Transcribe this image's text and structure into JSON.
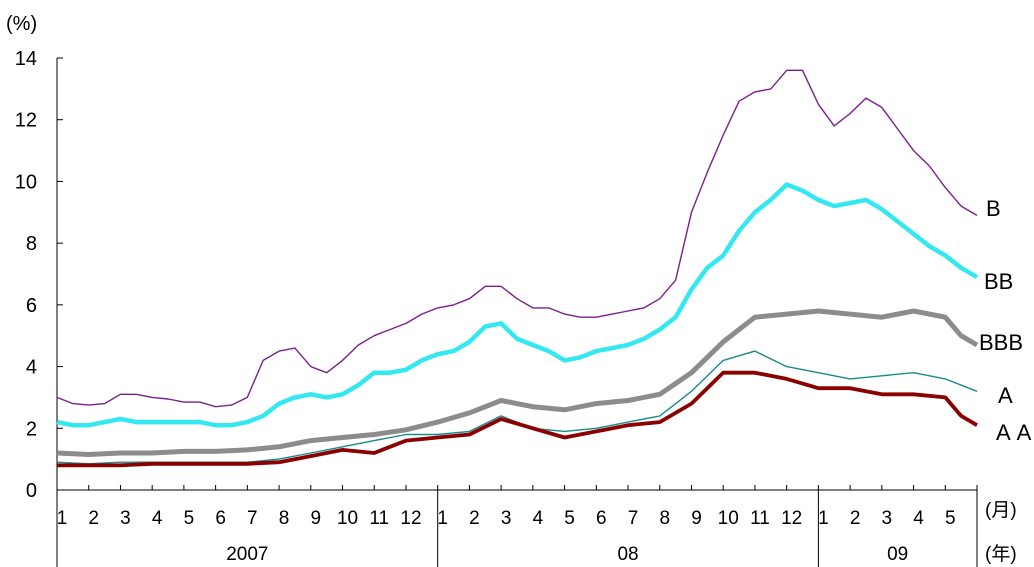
{
  "chart_data": {
    "type": "line",
    "y_unit": "(%)",
    "ylim": [
      0,
      14
    ],
    "yticks": [
      0,
      2,
      4,
      6,
      8,
      10,
      12,
      14
    ],
    "x_months": [
      "1",
      "2",
      "3",
      "4",
      "5",
      "6",
      "7",
      "8",
      "9",
      "10",
      "11",
      "12",
      "1",
      "2",
      "3",
      "4",
      "5",
      "6",
      "7",
      "8",
      "9",
      "10",
      "11",
      "12",
      "1",
      "2",
      "3",
      "4",
      "5"
    ],
    "x_month_unit": "(月)",
    "x_years": [
      {
        "label": "2007",
        "start": 0,
        "span": 12
      },
      {
        "label": "08",
        "start": 12,
        "span": 12
      },
      {
        "label": "09",
        "start": 24,
        "span": 5
      }
    ],
    "x_year_unit": "(年)",
    "grid": false,
    "legend": "inline labels at right end of each series",
    "series": [
      {
        "name": "B",
        "color": "#7b1f8c",
        "x": [
          0,
          0.5,
          1,
          1.5,
          2,
          2.5,
          3,
          3.5,
          4,
          4.5,
          5,
          5.5,
          6,
          6.5,
          7,
          7.5,
          8,
          8.5,
          9,
          9.5,
          10,
          10.5,
          11,
          11.5,
          12,
          12.5,
          13,
          13.5,
          14,
          14.5,
          15,
          15.5,
          16,
          16.5,
          17,
          17.5,
          18,
          18.5,
          19,
          19.5,
          20,
          20.5,
          21,
          21.5,
          22,
          22.5,
          23,
          23.5,
          24,
          24.5,
          25,
          25.5,
          26,
          26.5,
          27,
          27.5,
          28,
          28.5,
          29
        ],
        "values": [
          3.0,
          2.8,
          2.75,
          2.8,
          3.1,
          3.1,
          3.0,
          2.95,
          2.85,
          2.85,
          2.7,
          2.75,
          3.0,
          4.2,
          4.5,
          4.6,
          4.0,
          3.8,
          4.2,
          4.7,
          5.0,
          5.2,
          5.4,
          5.7,
          5.9,
          6.0,
          6.2,
          6.6,
          6.6,
          6.2,
          5.9,
          5.9,
          5.7,
          5.6,
          5.6,
          5.7,
          5.8,
          5.9,
          6.2,
          6.8,
          9.0,
          10.3,
          11.5,
          12.6,
          12.9,
          13.0,
          13.6,
          13.6,
          12.5,
          11.8,
          12.2,
          12.7,
          12.4,
          11.7,
          11.0,
          10.5,
          9.8,
          9.2,
          8.9
        ]
      },
      {
        "name": "BB",
        "color": "#33e8f0",
        "x": [
          0,
          0.5,
          1,
          1.5,
          2,
          2.5,
          3,
          3.5,
          4,
          4.5,
          5,
          5.5,
          6,
          6.5,
          7,
          7.5,
          8,
          8.5,
          9,
          9.5,
          10,
          10.5,
          11,
          11.5,
          12,
          12.5,
          13,
          13.5,
          14,
          14.5,
          15,
          15.5,
          16,
          16.5,
          17,
          17.5,
          18,
          18.5,
          19,
          19.5,
          20,
          20.5,
          21,
          21.5,
          22,
          22.5,
          23,
          23.5,
          24,
          24.5,
          25,
          25.5,
          26,
          26.5,
          27,
          27.5,
          28,
          28.5,
          29
        ],
        "values": [
          2.2,
          2.1,
          2.1,
          2.2,
          2.3,
          2.2,
          2.2,
          2.2,
          2.2,
          2.2,
          2.1,
          2.1,
          2.2,
          2.4,
          2.8,
          3.0,
          3.1,
          3.0,
          3.1,
          3.4,
          3.8,
          3.8,
          3.9,
          4.2,
          4.4,
          4.5,
          4.8,
          5.3,
          5.4,
          4.9,
          4.7,
          4.5,
          4.2,
          4.3,
          4.5,
          4.6,
          4.7,
          4.9,
          5.2,
          5.6,
          6.5,
          7.2,
          7.6,
          8.4,
          9.0,
          9.4,
          9.9,
          9.7,
          9.4,
          9.2,
          9.3,
          9.4,
          9.1,
          8.7,
          8.3,
          7.9,
          7.6,
          7.2,
          6.9
        ]
      },
      {
        "name": "BBB",
        "color": "#8c8c8c",
        "x": [
          0,
          1,
          2,
          3,
          4,
          5,
          6,
          7,
          8,
          9,
          10,
          11,
          12,
          13,
          14,
          15,
          16,
          17,
          18,
          19,
          20,
          21,
          22,
          23,
          24,
          25,
          26,
          27,
          28,
          28.5,
          29
        ],
        "values": [
          1.2,
          1.15,
          1.2,
          1.2,
          1.25,
          1.25,
          1.3,
          1.4,
          1.6,
          1.7,
          1.8,
          1.95,
          2.2,
          2.5,
          2.9,
          2.7,
          2.6,
          2.8,
          2.9,
          3.1,
          3.8,
          4.8,
          5.6,
          5.7,
          5.8,
          5.7,
          5.6,
          5.8,
          5.6,
          5.0,
          4.7
        ]
      },
      {
        "name": "A",
        "color": "#1a8a8a",
        "x": [
          0,
          1,
          2,
          3,
          4,
          5,
          6,
          7,
          8,
          9,
          10,
          11,
          12,
          13,
          14,
          15,
          16,
          17,
          18,
          19,
          20,
          21,
          22,
          23,
          24,
          25,
          26,
          27,
          28,
          29
        ],
        "values": [
          0.9,
          0.85,
          0.9,
          0.9,
          0.9,
          0.9,
          0.9,
          1.0,
          1.2,
          1.4,
          1.6,
          1.8,
          1.8,
          1.9,
          2.4,
          2.0,
          1.9,
          2.0,
          2.2,
          2.4,
          3.2,
          4.2,
          4.5,
          4.0,
          3.8,
          3.6,
          3.7,
          3.8,
          3.6,
          3.2
        ]
      },
      {
        "name": "AA",
        "color": "#8b0000",
        "x": [
          0,
          1,
          2,
          3,
          4,
          5,
          6,
          7,
          8,
          9,
          10,
          11,
          12,
          13,
          14,
          15,
          16,
          17,
          18,
          19,
          20,
          21,
          22,
          23,
          24,
          25,
          26,
          27,
          28,
          28.5,
          29
        ],
        "values": [
          0.8,
          0.8,
          0.8,
          0.85,
          0.85,
          0.85,
          0.85,
          0.9,
          1.1,
          1.3,
          1.2,
          1.6,
          1.7,
          1.8,
          2.3,
          2.0,
          1.7,
          1.9,
          2.1,
          2.2,
          2.8,
          3.8,
          3.8,
          3.6,
          3.3,
          3.3,
          3.1,
          3.1,
          3.0,
          2.4,
          2.1
        ]
      }
    ],
    "series_labels": [
      {
        "text": "B",
        "series": "B"
      },
      {
        "text": "BB",
        "series": "BB"
      },
      {
        "text": "BBB",
        "series": "BBB"
      },
      {
        "text": "A",
        "series": "A"
      },
      {
        "text": "AA",
        "series": "AA"
      }
    ]
  }
}
